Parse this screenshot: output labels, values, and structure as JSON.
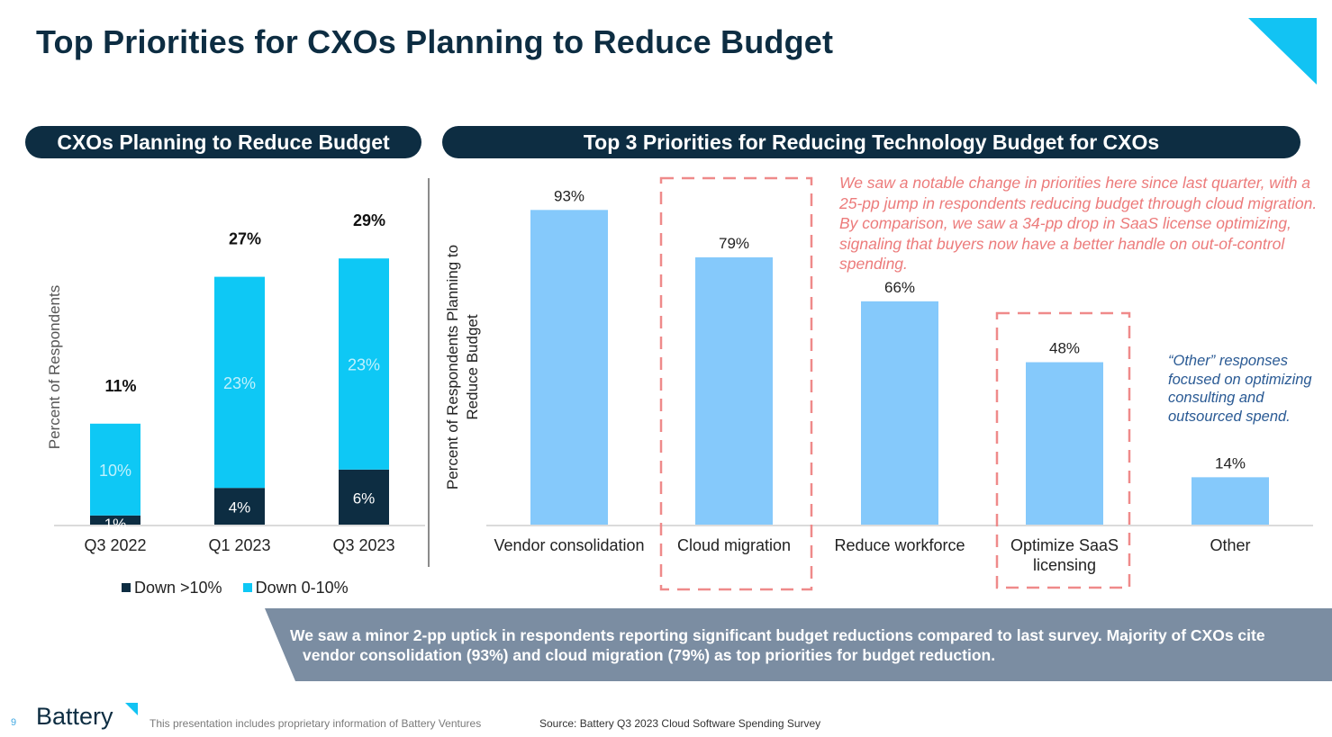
{
  "title": "Top Priorities for CXOs Planning to Reduce Budget",
  "left_panel": {
    "header": "CXOs Planning to Reduce Budget"
  },
  "right_panel": {
    "header": "Top 3 Priorities for Reducing Technology Budget for CXOs"
  },
  "colors": {
    "navy": "#0d2d42",
    "cyan": "#0ec8f5",
    "light_blue": "#85c9fb",
    "dashed_red": "#ef8a8a",
    "annotation_red": "#ec7b7b",
    "annotation_blue": "#2a5a94",
    "banner": "#7b8da2"
  },
  "chart_data": [
    {
      "type": "bar",
      "stacked": true,
      "ylabel": "Percent of Respondents",
      "categories": [
        "Q3 2022",
        "Q1 2023",
        "Q3 2023"
      ],
      "series": [
        {
          "name": "Down >10%",
          "values": [
            1,
            4,
            6
          ],
          "labels": [
            "1%",
            "4%",
            "6%"
          ]
        },
        {
          "name": "Down 0-10%",
          "values": [
            10,
            23,
            23
          ],
          "labels": [
            "10%",
            "23%",
            "23%"
          ]
        }
      ],
      "totals": [
        11,
        27,
        29
      ],
      "total_labels": [
        "11%",
        "27%",
        "29%"
      ],
      "legend": [
        "Down >10%",
        "Down 0-10%"
      ],
      "legend_position": "bottom",
      "ylim": [
        0,
        34
      ],
      "grid": false
    },
    {
      "type": "bar",
      "ylabel": "Percent of Respondents Planning to Reduce Budget",
      "categories": [
        "Vendor consolidation",
        "Cloud migration",
        "Reduce workforce",
        "Optimize SaaS licensing",
        "Other"
      ],
      "category_lines": [
        [
          "Vendor consolidation"
        ],
        [
          "Cloud migration"
        ],
        [
          "Reduce workforce"
        ],
        [
          "Optimize SaaS",
          "licensing"
        ],
        [
          "Other"
        ]
      ],
      "values": [
        93,
        79,
        66,
        48,
        14
      ],
      "value_labels": [
        "93%",
        "79%",
        "66%",
        "48%",
        "14%"
      ],
      "highlighted": [
        "Cloud migration",
        "Optimize SaaS licensing"
      ],
      "ylim": [
        0,
        100
      ],
      "grid": false
    }
  ],
  "annotation_red": "We saw a notable change in priorities here since last quarter, with a 25-pp jump in respondents reducing budget through cloud migration. By comparison, we saw a 34-pp drop in SaaS license optimizing, signaling that buyers now have a better handle on out-of-control spending.",
  "annotation_blue": "“Other” responses focused on optimizing consulting and outsourced spend.",
  "banner": {
    "line1": "We saw a minor 2-pp uptick in respondents reporting significant budget reductions compared to last survey. Majority of CXOs cite",
    "line2": "vendor consolidation (93%) and cloud migration (79%) as top priorities for budget reduction."
  },
  "footer": {
    "page_number": "9",
    "logo_text": "Battery",
    "disclaimer": "This presentation includes proprietary information of Battery Ventures",
    "source": "Source: Battery Q3 2023 Cloud Software Spending Survey"
  }
}
